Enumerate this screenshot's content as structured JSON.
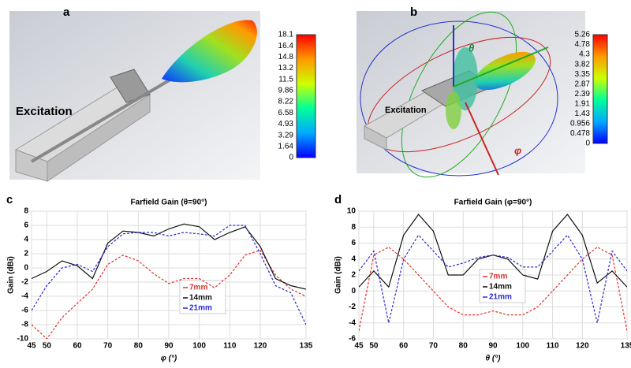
{
  "panels": {
    "a": {
      "label": "a",
      "annotation": "Excitation",
      "colorbar": [
        "18.1",
        "16.4",
        "14.8",
        "13.2",
        "11.5",
        "9.86",
        "8.22",
        "6.58",
        "4.93",
        "3.29",
        "1.64",
        "0"
      ]
    },
    "b": {
      "label": "b",
      "annotation": "Excitation",
      "theta": "θ",
      "phi": "φ",
      "colorbar": [
        "5.26",
        "4.78",
        "4.3",
        "3.82",
        "3.35",
        "2.87",
        "2.39",
        "1.91",
        "1.43",
        "0.956",
        "0.478",
        "0"
      ]
    },
    "c": {
      "label": "c"
    },
    "d": {
      "label": "d"
    }
  },
  "chart_data": [
    {
      "type": "line",
      "title": "Farfield Gain (θ=90°)",
      "x_label": "φ (°)",
      "y_label": "Gain (dBi)",
      "x": [
        45,
        50,
        55,
        60,
        65,
        70,
        75,
        80,
        85,
        90,
        95,
        100,
        105,
        110,
        115,
        120,
        125,
        130,
        135
      ],
      "xlim": [
        45,
        135
      ],
      "xticks": [
        45,
        50,
        60,
        70,
        80,
        90,
        100,
        110,
        120,
        135
      ],
      "ylim": [
        -10,
        8
      ],
      "yticks": [
        -10,
        -8,
        -6,
        -4,
        -2,
        0,
        2,
        4,
        6,
        8
      ],
      "grid": true,
      "series": [
        {
          "name": "7mm",
          "color": "#e03030",
          "style": "dashed",
          "values": [
            -8,
            -10,
            -7,
            -5,
            -3,
            0.5,
            1.8,
            1.0,
            -0.8,
            -2.2,
            -1.5,
            -1.5,
            -2.8,
            -1,
            1.8,
            2.5,
            -1,
            -3,
            -4
          ]
        },
        {
          "name": "14mm",
          "color": "#111111",
          "style": "solid",
          "values": [
            -1.5,
            -0.5,
            1.0,
            0.3,
            -1.5,
            3.5,
            5.2,
            5.0,
            4.5,
            5.5,
            6.2,
            5.8,
            4.0,
            5.0,
            5.8,
            3.0,
            -1.5,
            -2.5,
            -3.0
          ]
        },
        {
          "name": "21mm",
          "color": "#2a2ad0",
          "style": "dashed",
          "values": [
            -6,
            -2.5,
            0,
            0.5,
            -0.5,
            3.0,
            4.8,
            5.0,
            5.0,
            4.5,
            5.0,
            4.8,
            4.5,
            6.0,
            6.0,
            2.0,
            -2.5,
            -3.5,
            -8.0
          ]
        }
      ]
    },
    {
      "type": "line",
      "title": "Farfield Gain (φ=90°)",
      "x_label": "θ (°)",
      "y_label": "Gain (dBi)",
      "x": [
        45,
        50,
        55,
        60,
        65,
        70,
        75,
        80,
        85,
        90,
        95,
        100,
        105,
        110,
        115,
        120,
        125,
        130,
        135
      ],
      "xlim": [
        45,
        135
      ],
      "xticks": [
        45,
        50,
        60,
        70,
        80,
        90,
        100,
        110,
        120,
        135
      ],
      "ylim": [
        -6,
        10
      ],
      "yticks": [
        -6,
        -4,
        -2,
        0,
        2,
        4,
        6,
        8,
        10
      ],
      "grid": true,
      "series": [
        {
          "name": "7mm",
          "color": "#e03030",
          "style": "dashed",
          "values": [
            -5,
            4.5,
            5.5,
            4,
            2,
            0,
            -2,
            -3,
            -3,
            -2.5,
            -3,
            -3,
            -2,
            0,
            2,
            4,
            5.5,
            4.5,
            -5
          ]
        },
        {
          "name": "14mm",
          "color": "#111111",
          "style": "solid",
          "values": [
            0.5,
            2.5,
            0.5,
            7,
            9.6,
            7.5,
            2,
            2,
            4,
            4.5,
            4,
            2,
            1.5,
            7.5,
            9.6,
            7,
            1,
            2.5,
            0.5
          ]
        },
        {
          "name": "21mm",
          "color": "#2a2ad0",
          "style": "dashed",
          "values": [
            2.5,
            5,
            -4,
            4,
            7,
            5,
            3,
            3.5,
            4.2,
            4.5,
            4.2,
            3,
            3,
            5,
            7,
            4,
            -4,
            5,
            2.5
          ]
        }
      ]
    }
  ]
}
